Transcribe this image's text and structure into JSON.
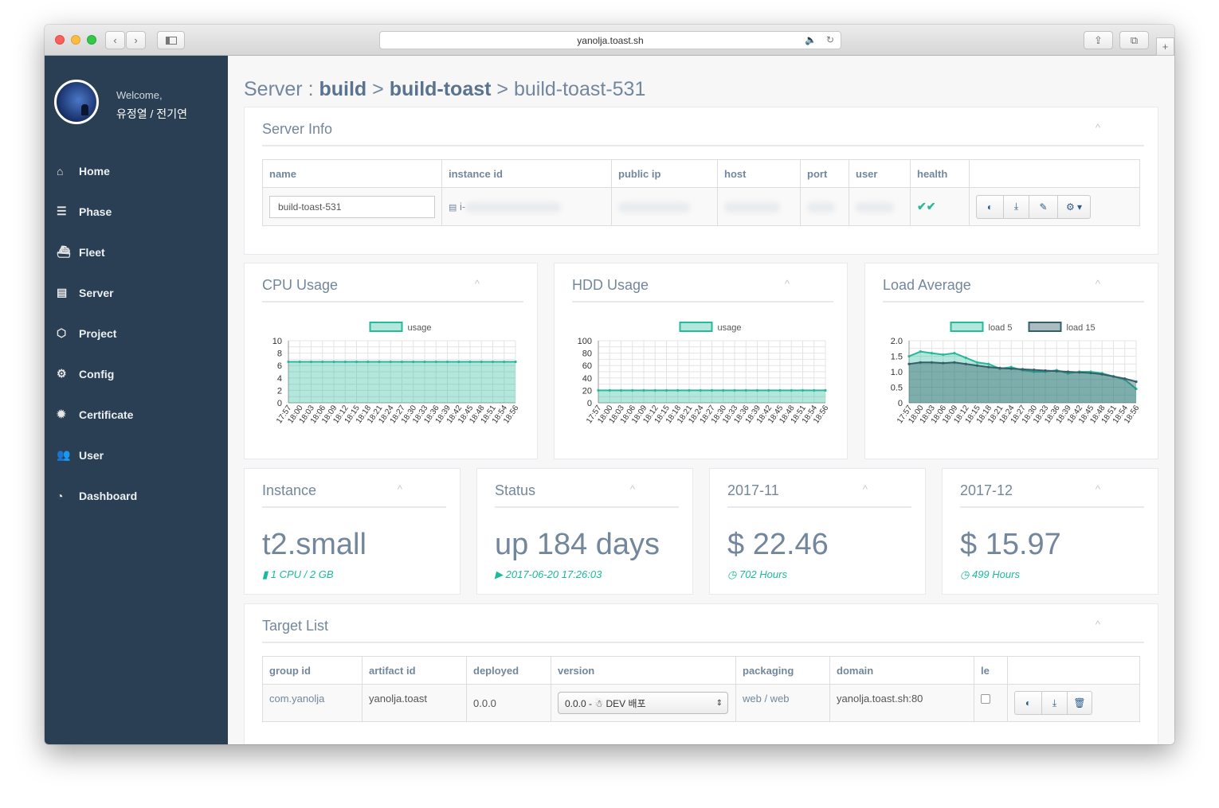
{
  "browser": {
    "url": "yanolja.toast.sh",
    "back_glyph": "‹",
    "forward_glyph": "›",
    "audio_glyph": "🔈",
    "reload_glyph": "↻",
    "share_glyph": "⇪",
    "tabs_glyph": "⧉",
    "newtab_glyph": "+"
  },
  "sidebar": {
    "welcome": "Welcome,",
    "username": "유정열 / 전기연",
    "items": [
      {
        "label": "Home",
        "icon": "home-icon",
        "glyph": "⌂"
      },
      {
        "label": "Phase",
        "icon": "sliders-icon",
        "glyph": "☰"
      },
      {
        "label": "Fleet",
        "icon": "ship-icon",
        "glyph": "⛴"
      },
      {
        "label": "Server",
        "icon": "server-icon",
        "glyph": "▤"
      },
      {
        "label": "Project",
        "icon": "cube-icon",
        "glyph": "⬡"
      },
      {
        "label": "Config",
        "icon": "gear-icon",
        "glyph": "⚙"
      },
      {
        "label": "Certificate",
        "icon": "certificate-icon",
        "glyph": "✹"
      },
      {
        "label": "User",
        "icon": "users-icon",
        "glyph": "👥"
      },
      {
        "label": "Dashboard",
        "icon": "dashboard-icon",
        "glyph": "◔"
      }
    ]
  },
  "title": {
    "prefix": "Server : ",
    "crumb1": "build",
    "sep": " > ",
    "crumb2": "build-toast",
    "crumb3": "build-toast-531"
  },
  "collapse_glyph": "^",
  "server_info": {
    "title": "Server Info",
    "columns": [
      "name",
      "instance id",
      "public ip",
      "host",
      "port",
      "user",
      "health"
    ],
    "row": {
      "name": "build-toast-531",
      "instance_id": "i-",
      "server_glyph": "▤",
      "health": "✔✔"
    },
    "action_glyphs": [
      "◐",
      "⤓",
      "✎",
      "⚙ ▾"
    ]
  },
  "charts": [
    {
      "panel_title": "CPU Usage",
      "type": "area",
      "legend": [
        "usage"
      ],
      "x": [
        "17:57",
        "18:00",
        "18:03",
        "18:06",
        "18:09",
        "18:12",
        "18:15",
        "18:18",
        "18:21",
        "18:24",
        "18:27",
        "18:30",
        "18:33",
        "18:36",
        "18:39",
        "18:42",
        "18:45",
        "18:48",
        "18:51",
        "18:54",
        "18:56"
      ],
      "ylim": [
        0,
        10
      ],
      "yticks": [
        "10",
        "8",
        "6",
        "4",
        "2",
        "0"
      ],
      "series": [
        {
          "name": "usage",
          "values": [
            6.6,
            6.6,
            6.6,
            6.6,
            6.6,
            6.6,
            6.6,
            6.6,
            6.6,
            6.6,
            6.6,
            6.6,
            6.6,
            6.6,
            6.6,
            6.6,
            6.6,
            6.6,
            6.6,
            6.6,
            6.6
          ]
        }
      ]
    },
    {
      "panel_title": "HDD Usage",
      "type": "area",
      "legend": [
        "usage"
      ],
      "x": [
        "17:57",
        "18:00",
        "18:03",
        "18:06",
        "18:09",
        "18:12",
        "18:15",
        "18:18",
        "18:21",
        "18:24",
        "18:27",
        "18:30",
        "18:33",
        "18:36",
        "18:39",
        "18:42",
        "18:45",
        "18:48",
        "18:51",
        "18:54",
        "18:56"
      ],
      "ylim": [
        0,
        100
      ],
      "yticks": [
        "100",
        "80",
        "60",
        "40",
        "20",
        "0"
      ],
      "series": [
        {
          "name": "usage",
          "values": [
            20,
            20,
            20,
            20,
            20,
            20,
            20,
            20,
            20,
            20,
            20,
            20,
            20,
            20,
            20,
            20,
            20,
            20,
            20,
            20,
            20
          ]
        }
      ]
    },
    {
      "panel_title": "Load Average",
      "type": "area",
      "legend": [
        "load 5",
        "load 15"
      ],
      "x": [
        "17:57",
        "18:00",
        "18:03",
        "18:06",
        "18:09",
        "18:12",
        "18:15",
        "18:18",
        "18:21",
        "18:24",
        "18:27",
        "18:30",
        "18:33",
        "18:36",
        "18:39",
        "18:42",
        "18:45",
        "18:48",
        "18:51",
        "18:54",
        "18:56"
      ],
      "ylim": [
        0,
        2.0
      ],
      "yticks": [
        "2.0",
        "1.5",
        "1.0",
        "0.5",
        "0"
      ],
      "series": [
        {
          "name": "load 5",
          "values": [
            1.5,
            1.65,
            1.6,
            1.55,
            1.6,
            1.45,
            1.3,
            1.25,
            1.1,
            1.15,
            1.05,
            1.0,
            1.0,
            1.05,
            0.95,
            1.0,
            1.0,
            0.95,
            0.85,
            0.75,
            0.45
          ]
        },
        {
          "name": "load 15",
          "values": [
            1.25,
            1.3,
            1.3,
            1.28,
            1.3,
            1.25,
            1.2,
            1.15,
            1.12,
            1.1,
            1.08,
            1.06,
            1.04,
            1.02,
            1.0,
            0.98,
            0.96,
            0.92,
            0.85,
            0.78,
            0.68
          ]
        }
      ]
    }
  ],
  "stats": [
    {
      "title": "Instance",
      "value": "t2.small",
      "icon": "memory-icon",
      "glyph": "▮",
      "sub": "1 CPU / 2 GB"
    },
    {
      "title": "Status",
      "value": "up 184 days",
      "icon": "play-circle-icon",
      "glyph": "▶",
      "sub": "2017-06-20 17:26:03"
    },
    {
      "title": "2017-11",
      "value": "$ 22.46",
      "icon": "clock-icon",
      "glyph": "◷",
      "sub": "702 Hours"
    },
    {
      "title": "2017-12",
      "value": "$ 15.97",
      "icon": "clock-icon",
      "glyph": "◷",
      "sub": "499 Hours"
    }
  ],
  "target_list": {
    "title": "Target List",
    "columns": [
      "group id",
      "artifact id",
      "deployed",
      "version",
      "packaging",
      "domain",
      "le"
    ],
    "row": {
      "group_id": "com.yanolja",
      "artifact_id": "yanolja.toast",
      "deployed": "0.0.0",
      "version": "0.0.0 - ☃ DEV 배포",
      "packaging": "web / web",
      "domain": "yanolja.toast.sh:80"
    },
    "select_arrow": "⇕",
    "action_glyphs": [
      "◐",
      "⤓",
      "🗑"
    ]
  },
  "colors": {
    "accent": "#1abb9c",
    "sidebar": "#2a3f54",
    "title": "#73879c",
    "load15": "#3d6670"
  }
}
